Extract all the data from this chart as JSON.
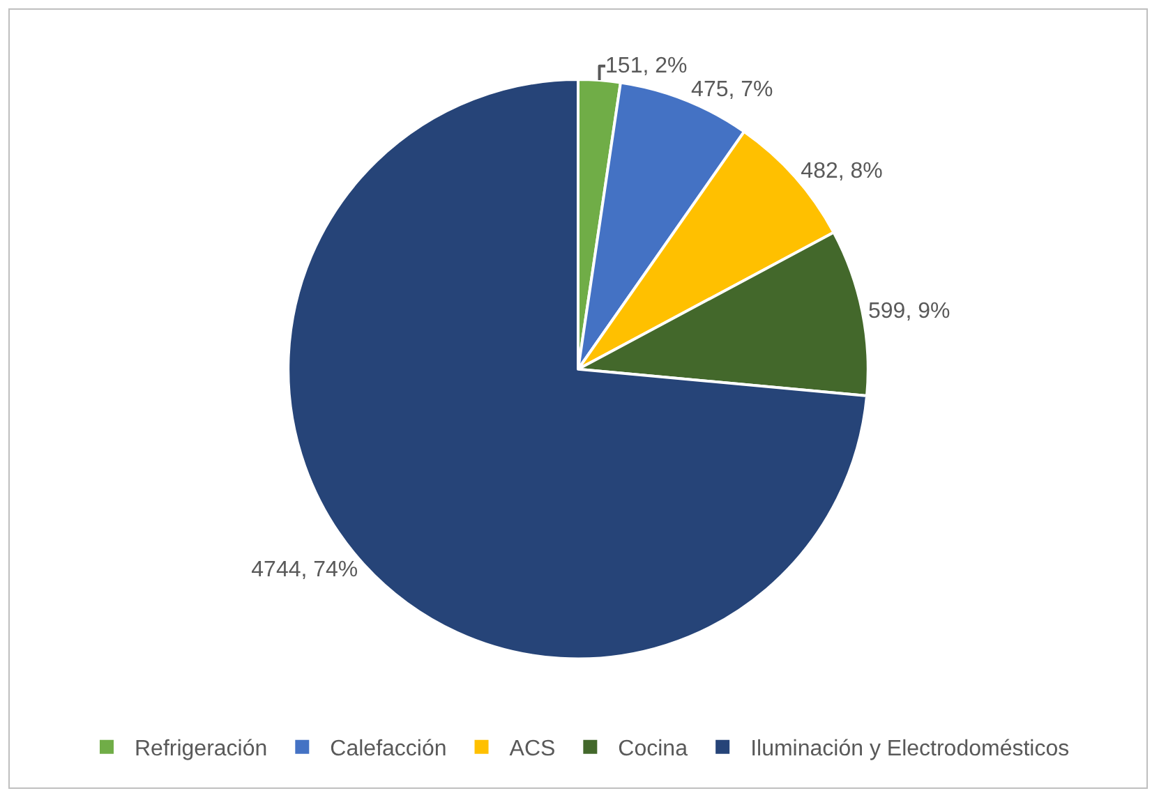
{
  "chart_data": {
    "type": "pie",
    "categories": [
      "Refrigeración",
      "Calefacción",
      "ACS",
      "Cocina",
      "Iluminación y Electrodomésticos"
    ],
    "values": [
      151,
      475,
      482,
      599,
      4744
    ],
    "colors": [
      "#70ad47",
      "#4472c4",
      "#ffc000",
      "#43682b",
      "#264478"
    ],
    "value_labels": [
      "151, 2%",
      "475, 7%",
      "482, 8%",
      "599, 9%",
      "4744, 74%"
    ],
    "legend": "bottom"
  }
}
